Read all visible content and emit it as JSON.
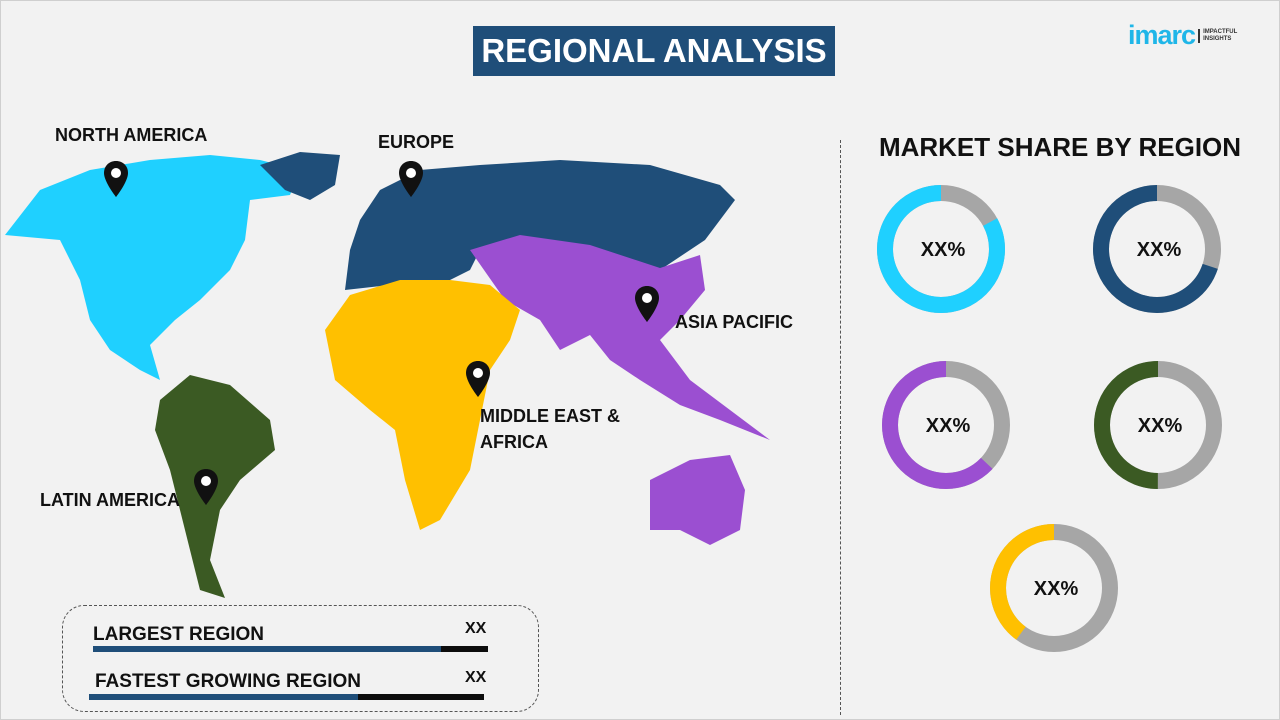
{
  "header": {
    "title": "REGIONAL ANALYSIS",
    "logo_brand": "imarc",
    "logo_tagline": [
      "IMPACTFUL",
      "INSIGHTS"
    ]
  },
  "map": {
    "regions": [
      {
        "name": "NORTH AMERICA",
        "color": "#1fd0ff",
        "icon": "map-pin-icon"
      },
      {
        "name": "EUROPE",
        "color": "#1f4e79",
        "icon": "map-pin-icon"
      },
      {
        "name": "ASIA PACIFIC",
        "color": "#9b4fd1",
        "icon": "map-pin-icon"
      },
      {
        "name": "MIDDLE EAST & AFRICA",
        "color": "#ffc000",
        "icon": "map-pin-icon"
      },
      {
        "name": "LATIN AMERICA",
        "color": "#3b5a23",
        "icon": "map-pin-icon"
      }
    ],
    "mea_label_lines": [
      "MIDDLE EAST &",
      "AFRICA"
    ]
  },
  "stats": {
    "items": [
      {
        "label": "LARGEST REGION",
        "value": "XX",
        "bar_fill_percent": 88
      },
      {
        "label": "FASTEST GROWING REGION",
        "value": "XX",
        "bar_fill_percent": 68
      }
    ],
    "bar_color": "#1f4e79"
  },
  "chart_data": {
    "type": "pie",
    "title": "MARKET SHARE BY REGION",
    "remainder_color": "#a6a6a6",
    "series": [
      {
        "color": "#1fd0ff",
        "label": "XX%",
        "filled_fraction": 0.83
      },
      {
        "color": "#1f4e79",
        "label": "XX%",
        "filled_fraction": 0.7
      },
      {
        "color": "#9b4fd1",
        "label": "XX%",
        "filled_fraction": 0.63
      },
      {
        "color": "#3b5a23",
        "label": "XX%",
        "filled_fraction": 0.5
      },
      {
        "color": "#ffc000",
        "label": "XX%",
        "filled_fraction": 0.4
      }
    ]
  }
}
